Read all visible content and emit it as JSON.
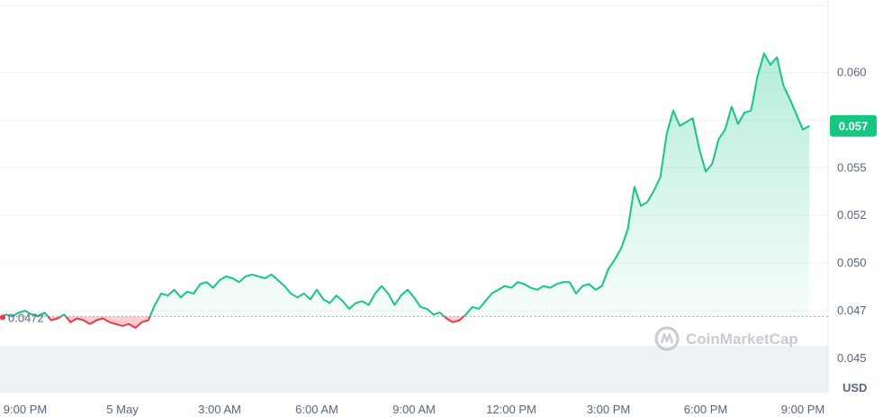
{
  "chart_data": {
    "type": "line",
    "y_unit": "USD",
    "start_price_label": "0.0472",
    "current_price_label": "0.057",
    "watermark": "CoinMarketCap",
    "ylim": [
      0.0432,
      0.0638
    ],
    "y_ticks": [
      {
        "value": 0.045,
        "label": "0.045"
      },
      {
        "value": 0.0475,
        "label": "0.047"
      },
      {
        "value": 0.05,
        "label": "0.050"
      },
      {
        "value": 0.0525,
        "label": "0.052"
      },
      {
        "value": 0.055,
        "label": "0.055"
      },
      {
        "value": 0.0575,
        "label": "0.057"
      },
      {
        "value": 0.06,
        "label": "0.060"
      }
    ],
    "x_ticks": [
      {
        "hour": 0,
        "label": "9:00 PM"
      },
      {
        "hour": 3,
        "label": "5 May"
      },
      {
        "hour": 6,
        "label": "3:00 AM"
      },
      {
        "hour": 9,
        "label": "6:00 AM"
      },
      {
        "hour": 12,
        "label": "9:00 AM"
      },
      {
        "hour": 15,
        "label": "12:00 PM"
      },
      {
        "hour": 18,
        "label": "3:00 PM"
      },
      {
        "hour": 21,
        "label": "6:00 PM"
      },
      {
        "hour": 24,
        "label": "9:00 PM"
      }
    ],
    "reference_price": 0.0472,
    "colors": {
      "up": "#16c784",
      "down": "#ea3943",
      "grid": "#eff2f5",
      "volume": "#eff2f5",
      "reference": "#8a919e"
    },
    "series": [
      {
        "hours": [
          -0.8,
          -0.6,
          -0.4,
          -0.2,
          0,
          0.2,
          0.4,
          0.6,
          0.8,
          1.0,
          1.2,
          1.4,
          1.6,
          1.8,
          2.0,
          2.2,
          2.4,
          2.6,
          2.8,
          3.0,
          3.2,
          3.4,
          3.6,
          3.8,
          4.0,
          4.2,
          4.4,
          4.6,
          4.8,
          5.0,
          5.2,
          5.4,
          5.6,
          5.8,
          6.0,
          6.2,
          6.4,
          6.6,
          6.8,
          7.0,
          7.2,
          7.4,
          7.6,
          7.8,
          8.0,
          8.2,
          8.4,
          8.6,
          8.8,
          9.0,
          9.2,
          9.4,
          9.6,
          9.8,
          10.0,
          10.2,
          10.4,
          10.6,
          10.8,
          11.0,
          11.2,
          11.4,
          11.6,
          11.8,
          12.0,
          12.2,
          12.4,
          12.6,
          12.8,
          13.0,
          13.2,
          13.4,
          13.6,
          13.8,
          14.0,
          14.2,
          14.4,
          14.6,
          14.8,
          15.0,
          15.2,
          15.4,
          15.6,
          15.8,
          16.0,
          16.2,
          16.4,
          16.6,
          16.8,
          17.0,
          17.2,
          17.4,
          17.6,
          17.8,
          18.0,
          18.2,
          18.4,
          18.6,
          18.8,
          19.0,
          19.2,
          19.4,
          19.6,
          19.8,
          20.0,
          20.2,
          20.4,
          20.6,
          20.8,
          21.0,
          21.2,
          21.4,
          21.6,
          21.8,
          22.0,
          22.2,
          22.4,
          22.6,
          22.8,
          23.0,
          23.2,
          23.4,
          23.6,
          23.8,
          24.0,
          24.2
        ],
        "prices": [
          0.0471,
          0.0473,
          0.0472,
          0.0474,
          0.0475,
          0.0473,
          0.0472,
          0.0474,
          0.047,
          0.0471,
          0.0473,
          0.0469,
          0.0471,
          0.047,
          0.0468,
          0.047,
          0.0471,
          0.0469,
          0.0468,
          0.0467,
          0.0468,
          0.0466,
          0.0469,
          0.047,
          0.0478,
          0.0484,
          0.0483,
          0.0486,
          0.0482,
          0.0485,
          0.0484,
          0.0489,
          0.049,
          0.0487,
          0.0491,
          0.0493,
          0.0492,
          0.049,
          0.0493,
          0.0494,
          0.0493,
          0.0492,
          0.0494,
          0.0491,
          0.0488,
          0.0484,
          0.0482,
          0.0484,
          0.0481,
          0.0486,
          0.0481,
          0.0479,
          0.0483,
          0.048,
          0.0476,
          0.0479,
          0.048,
          0.0478,
          0.0484,
          0.0488,
          0.0484,
          0.0478,
          0.0483,
          0.0486,
          0.0482,
          0.0477,
          0.0476,
          0.0473,
          0.0474,
          0.0471,
          0.0469,
          0.047,
          0.0473,
          0.0477,
          0.0476,
          0.048,
          0.0484,
          0.0486,
          0.0488,
          0.0487,
          0.049,
          0.0489,
          0.0487,
          0.0486,
          0.0488,
          0.0487,
          0.0489,
          0.049,
          0.049,
          0.0484,
          0.0488,
          0.0489,
          0.0486,
          0.0488,
          0.0497,
          0.0502,
          0.0508,
          0.0518,
          0.054,
          0.053,
          0.0532,
          0.0538,
          0.0545,
          0.0568,
          0.058,
          0.0572,
          0.0574,
          0.0576,
          0.056,
          0.0548,
          0.0552,
          0.0565,
          0.057,
          0.0582,
          0.0573,
          0.0579,
          0.058,
          0.0598,
          0.061,
          0.0604,
          0.0608,
          0.0593,
          0.0586,
          0.0578,
          0.057,
          0.0572
        ]
      }
    ]
  }
}
